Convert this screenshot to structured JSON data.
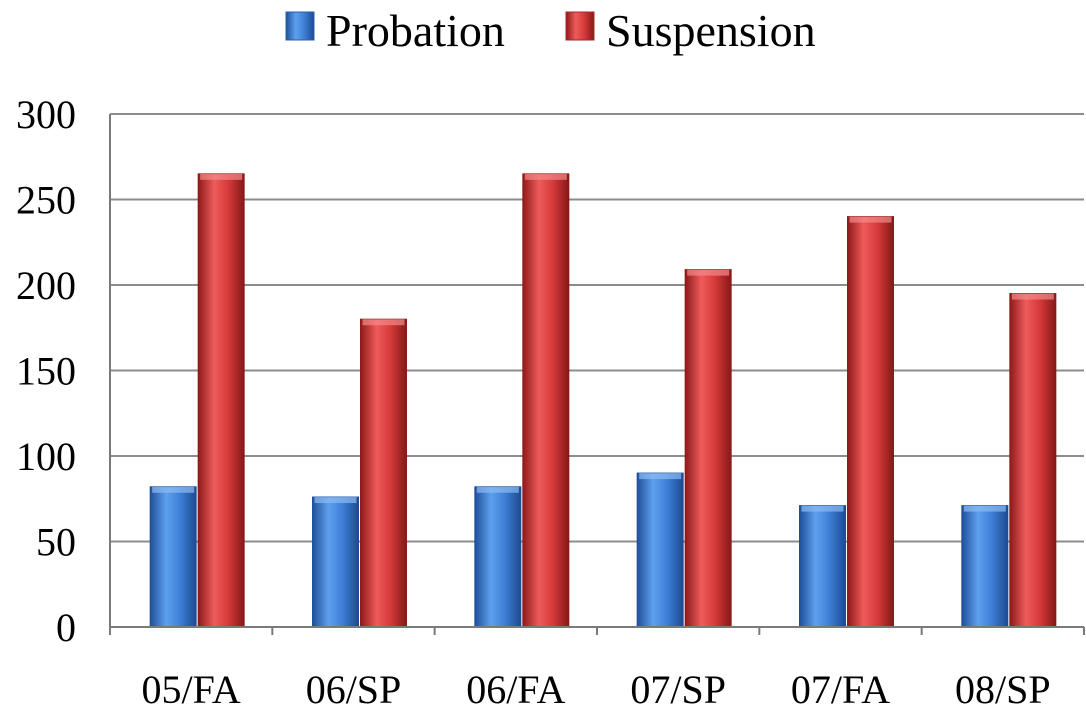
{
  "chart_data": {
    "type": "bar",
    "categories": [
      "05/FA",
      "06/SP",
      "06/FA",
      "07/SP",
      "07/FA",
      "08/SP"
    ],
    "series": [
      {
        "name": "Probation",
        "values": [
          82,
          76,
          82,
          90,
          71,
          71
        ]
      },
      {
        "name": "Suspension",
        "values": [
          265,
          180,
          265,
          209,
          240,
          195
        ]
      }
    ],
    "title": "",
    "xlabel": "",
    "ylabel": "",
    "ylim": [
      0,
      300
    ],
    "yticks": [
      0,
      50,
      100,
      150,
      200,
      250,
      300
    ],
    "ytick_labels": [
      "0",
      "50",
      "100",
      "150",
      "200",
      "250",
      "300"
    ],
    "grid": "horizontal",
    "legend_position": "top"
  },
  "colors": {
    "Probation": "#3d7fd6",
    "Suspension": "#d63a3a",
    "grid": "#8c8c8c"
  }
}
